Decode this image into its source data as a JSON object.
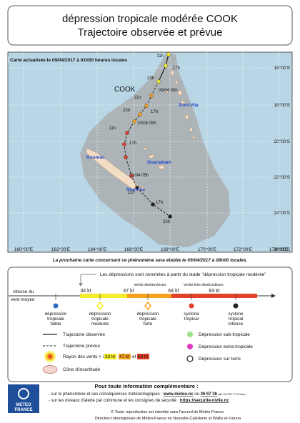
{
  "header": {
    "title": "dépression tropicale modérée COOK",
    "subtitle": "Trajectoire observée et prévue"
  },
  "map": {
    "updated": "Carte actualisée le 09/04/2017 à 01h50 heures locales",
    "storm_name": "COOK",
    "places": [
      "Port-Vila",
      "Koumac",
      "Ouanaham",
      "Nouméa"
    ],
    "track_labels": [
      "11h",
      "17h",
      "23h",
      "09/04 05h",
      "11h",
      "17h",
      "23h",
      "10/04 05h",
      "11h",
      "17h",
      "11/04 05h",
      "11h",
      "17h",
      "23h"
    ],
    "lat_labels": [
      "16°00'S",
      "18°00'S",
      "20°00'S",
      "22°00'S",
      "24°00'S",
      "26°00'S"
    ],
    "lon_labels": [
      "160°00'E",
      "162°00'E",
      "164°00'E",
      "166°00'E",
      "168°00'E",
      "170°00'E",
      "172°00'E",
      "174°00'E"
    ]
  },
  "next_map": "La prochaine carte concernant ce phénomène sera établie le 09/04/2017 à 08h00 locales.",
  "legend": {
    "naming_note": "Les dépressions sont nommées à partir du stade \"dépression tropicale modérée\"",
    "wind_axis": [
      "vitesse du",
      "vent moyen"
    ],
    "thresholds": [
      "34 kt",
      "47 kt",
      "64 kt",
      "83 kt"
    ],
    "wind_bands": [
      "vents destructeurs",
      "vents très destructeurs"
    ],
    "categories": [
      [
        "dépression",
        "tropicale",
        "faible"
      ],
      [
        "dépression",
        "tropicale",
        "modérée"
      ],
      [
        "dépression",
        "tropicale",
        "forte"
      ],
      [
        "cyclone",
        "tropical"
      ],
      [
        "cyclone",
        "tropical",
        "intense"
      ]
    ],
    "observed": "Trajectoire observée",
    "forecast": "Trajectoire prévue",
    "radius": {
      "label": "Rayon des vents >",
      "r33": "33 kt",
      "r47": "47 kt",
      "and": "et",
      "r63": "63 kt"
    },
    "cone": "Cône d'incertitude",
    "subtropical": "Dépression sub-tropicale",
    "extratropical": "Dépression extra-tropicale",
    "overland": "Dépression sur terre"
  },
  "footer": {
    "heading": "Pour toute information complémentaire :",
    "line1": {
      "text": "- sur le phénomène et ses conséquences météorologiques : ",
      "site": "www.meteo.nc",
      "or": " ou ",
      "phone": "36 67 36",
      "price": "(62.25 XPF TTC/min)"
    },
    "line2": {
      "text": "- sur les niveaux d'alerte par commune et les consignes de sécurité : ",
      "site": "https://securite-civile.nc"
    },
    "logo": [
      "METEO",
      "FRANCE"
    ],
    "copyright": "© Toute reproduction est interdite sans l'accord de Météo-France.",
    "office": "Direction Interrégionale de Météo-France en Nouvelle-Calédonie et Wallis et Futuna"
  }
}
